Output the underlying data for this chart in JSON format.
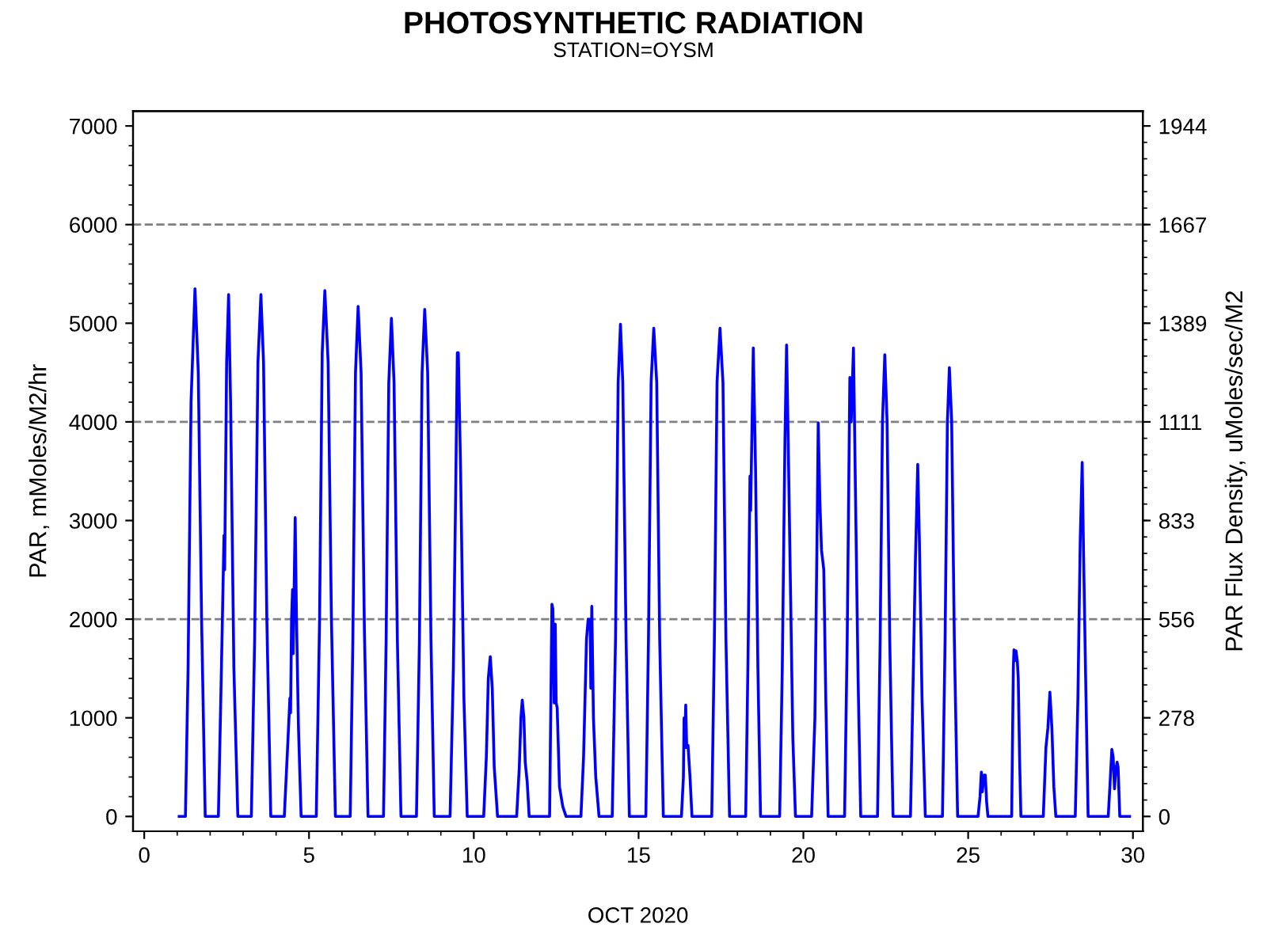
{
  "chart_data": {
    "type": "line",
    "title": "PHOTOSYNTHETIC RADIATION",
    "subtitle": "STATION=OYSM",
    "xlabel": "OCT 2020",
    "ylabel": "PAR, mMoles/M2/hr",
    "y2label": "PAR Flux Density, uMoles/sec/M2",
    "xlim": [
      -0.34,
      30.3
    ],
    "xticks": [
      0,
      5,
      10,
      15,
      20,
      25,
      30
    ],
    "ylim": [
      -150,
      7150
    ],
    "yticks": [
      0,
      1000,
      2000,
      3000,
      4000,
      5000,
      6000,
      7000
    ],
    "y2lim": [
      -41.67,
      1986.1
    ],
    "y2ticks": [
      0,
      {
        "value": 277.8,
        "label": "278"
      },
      {
        "value": 555.6,
        "label": "556"
      },
      {
        "value": 833.3,
        "label": "833"
      },
      {
        "value": 1111.1,
        "label": "1111"
      },
      {
        "value": 1388.9,
        "label": "1389"
      },
      {
        "value": 1666.7,
        "label": "1667"
      },
      {
        "value": 1944.4,
        "label": "1944"
      }
    ],
    "grid": false,
    "legend": false,
    "marker": "none",
    "line_style": "solid",
    "ref_lines": [
      {
        "axis": "y",
        "value": 2000,
        "color": "#808080",
        "line_style": "dashed"
      },
      {
        "axis": "y",
        "value": 4000,
        "color": "#808080",
        "line_style": "dashed"
      },
      {
        "axis": "y",
        "value": 6000,
        "color": "#808080",
        "line_style": "dashed"
      }
    ],
    "series": [
      {
        "color": "#0000ff",
        "x": [
          1.06,
          1.25,
          1.33,
          1.42,
          1.54,
          1.64,
          1.74,
          1.85,
          2.25,
          2.36,
          2.42,
          2.44,
          2.5,
          2.56,
          2.62,
          2.72,
          2.84,
          3.25,
          3.35,
          3.45,
          3.54,
          3.62,
          3.72,
          3.84,
          4.25,
          4.35,
          4.42,
          4.44,
          4.47,
          4.5,
          4.52,
          4.58,
          4.62,
          4.68,
          4.76,
          5.22,
          5.32,
          5.4,
          5.48,
          5.58,
          5.68,
          5.8,
          6.25,
          6.33,
          6.41,
          6.49,
          6.58,
          6.68,
          6.79,
          7.26,
          7.34,
          7.42,
          7.5,
          7.58,
          7.68,
          7.79,
          8.26,
          8.35,
          8.43,
          8.51,
          8.6,
          8.7,
          8.8,
          9.28,
          9.38,
          9.45,
          9.5,
          9.53,
          9.6,
          9.7,
          9.8,
          10.3,
          10.38,
          10.44,
          10.5,
          10.56,
          10.62,
          10.66,
          10.72,
          11.3,
          11.38,
          11.43,
          11.47,
          11.52,
          11.56,
          11.62,
          11.68,
          12.3,
          12.37,
          12.4,
          12.44,
          12.47,
          12.5,
          12.53,
          12.6,
          12.7,
          12.8,
          13.25,
          13.33,
          13.42,
          13.47,
          13.5,
          13.53,
          13.55,
          13.58,
          13.63,
          13.7,
          13.8,
          14.2,
          14.3,
          14.38,
          14.45,
          14.52,
          14.62,
          14.72,
          15.22,
          15.3,
          15.38,
          15.46,
          15.55,
          15.64,
          15.75,
          16.3,
          16.36,
          16.38,
          16.4,
          16.43,
          16.46,
          16.5,
          16.56,
          16.62,
          17.22,
          17.3,
          17.38,
          17.47,
          17.56,
          17.65,
          17.76,
          18.25,
          18.32,
          18.38,
          18.4,
          18.48,
          18.55,
          18.62,
          18.7,
          19.28,
          19.36,
          19.44,
          19.49,
          19.54,
          19.6,
          19.68,
          19.76,
          20.25,
          20.35,
          20.42,
          20.45,
          20.5,
          20.55,
          20.62,
          20.68,
          20.75,
          21.25,
          21.33,
          21.41,
          21.45,
          21.52,
          21.58,
          21.66,
          21.74,
          22.25,
          22.33,
          22.4,
          22.47,
          22.54,
          22.62,
          22.72,
          23.25,
          23.32,
          23.4,
          23.47,
          23.52,
          23.6,
          23.7,
          24.22,
          24.3,
          24.37,
          24.43,
          24.5,
          24.58,
          24.68,
          25.3,
          25.36,
          25.4,
          25.43,
          25.48,
          25.52,
          25.56,
          25.6,
          26.32,
          26.37,
          26.39,
          26.42,
          26.45,
          26.49,
          26.52,
          26.56,
          26.6,
          27.28,
          27.36,
          27.42,
          27.48,
          27.54,
          27.6,
          27.66,
          28.25,
          28.33,
          28.4,
          28.46,
          28.5,
          28.56,
          28.64,
          29.25,
          29.3,
          29.36,
          29.4,
          29.44,
          29.48,
          29.52,
          29.55,
          29.6,
          29.9
        ],
        "values": [
          0,
          0,
          1500,
          4200,
          5350,
          4500,
          2000,
          0,
          0,
          1800,
          2850,
          2500,
          4600,
          5290,
          4200,
          1500,
          0,
          0,
          1800,
          4600,
          5290,
          4600,
          2000,
          0,
          0,
          700,
          1200,
          1050,
          2000,
          2300,
          1650,
          3030,
          2000,
          900,
          0,
          0,
          2000,
          4700,
          5330,
          4600,
          2000,
          0,
          0,
          1800,
          4500,
          5170,
          4500,
          1900,
          0,
          0,
          1800,
          4400,
          5050,
          4400,
          1800,
          0,
          0,
          1800,
          4500,
          5140,
          4500,
          1800,
          0,
          0,
          1500,
          3300,
          4700,
          4700,
          3500,
          1200,
          0,
          0,
          600,
          1400,
          1620,
          1300,
          500,
          300,
          0,
          0,
          500,
          1000,
          1180,
          1000,
          550,
          350,
          0,
          0,
          2150,
          2100,
          1150,
          1950,
          1150,
          1100,
          300,
          100,
          0,
          0,
          600,
          1800,
          2000,
          1900,
          2000,
          1300,
          2130,
          1000,
          400,
          0,
          0,
          1800,
          4400,
          4990,
          4400,
          1800,
          0,
          0,
          1800,
          4400,
          4950,
          4400,
          1800,
          0,
          0,
          400,
          1000,
          700,
          1130,
          700,
          720,
          400,
          0,
          0,
          1800,
          4400,
          4950,
          4400,
          1800,
          0,
          0,
          1600,
          3450,
          3100,
          4750,
          3500,
          1500,
          0,
          0,
          1500,
          3800,
          4780,
          3800,
          2500,
          800,
          0,
          0,
          1000,
          3000,
          3990,
          3200,
          2700,
          2500,
          1200,
          0,
          0,
          1800,
          4450,
          4000,
          4750,
          3300,
          1400,
          0,
          0,
          1800,
          4000,
          4680,
          4000,
          1800,
          0,
          0,
          1200,
          2600,
          3570,
          2800,
          1200,
          0,
          0,
          1800,
          4000,
          4550,
          4000,
          1800,
          0,
          0,
          200,
          450,
          250,
          420,
          420,
          150,
          0,
          0,
          1500,
          1690,
          1580,
          1680,
          1580,
          1400,
          600,
          0,
          0,
          700,
          900,
          1260,
          900,
          300,
          0,
          0,
          1200,
          2800,
          3590,
          2700,
          1500,
          0,
          0,
          300,
          680,
          600,
          280,
          480,
          550,
          500,
          0,
          0
        ]
      }
    ]
  }
}
